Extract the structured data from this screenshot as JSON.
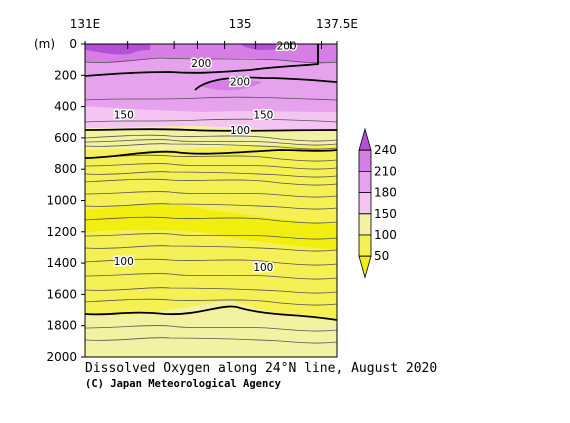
{
  "chart_data": {
    "type": "heatmap",
    "title": "Dissolved Oxygen along 24°N line, August 2020",
    "credit": "(C) Japan Meteorological Agency",
    "y_unit_label": "(m)",
    "x_axis": {
      "range": [
        131,
        137.5
      ],
      "tick_labels": [
        {
          "value": 131,
          "label": "131E"
        },
        {
          "value": 135,
          "label": "135"
        },
        {
          "value": 137.5,
          "label": "137.5E"
        }
      ],
      "station_ticks": [
        131,
        132.1,
        133.3,
        133.9,
        134.6,
        135.4,
        136.3,
        137.1,
        137.5
      ]
    },
    "y_axis": {
      "range": [
        0,
        2000
      ],
      "reversed": true,
      "ticks": [
        0,
        200,
        400,
        600,
        800,
        1000,
        1200,
        1400,
        1600,
        1800,
        2000
      ]
    },
    "colorbar": {
      "levels": [
        "50",
        "100",
        "150",
        "180",
        "210",
        "240"
      ],
      "bands": [
        {
          "range": "<50",
          "color": "#f2ee0f"
        },
        {
          "range": "50-100",
          "color": "#f5f054"
        },
        {
          "range": "100-150",
          "color": "#f3f2a2"
        },
        {
          "range": "150-180",
          "color": "#f4c4f2"
        },
        {
          "range": "180-210",
          "color": "#e7a2ee"
        },
        {
          "range": "210-240",
          "color": "#d67ee6"
        },
        {
          "range": ">240",
          "color": "#b44fd8"
        }
      ]
    },
    "contour_labels": [
      {
        "text": "200",
        "x": 134.0,
        "depth": 120
      },
      {
        "text": "200",
        "x": 135.0,
        "depth": 240
      },
      {
        "text": "200",
        "x": 136.2,
        "depth": 10
      },
      {
        "text": "150",
        "x": 132.0,
        "depth": 450
      },
      {
        "text": "150",
        "x": 135.6,
        "depth": 450
      },
      {
        "text": "100",
        "x": 135.0,
        "depth": 550
      },
      {
        "text": "100",
        "x": 132.0,
        "depth": 1385
      },
      {
        "text": "100",
        "x": 135.6,
        "depth": 1425
      }
    ]
  },
  "colors": {
    "low": "#f2ee0f",
    "mid": "#f3f2a2",
    "high": "#d67ee6",
    "max": "#b44fd8"
  }
}
